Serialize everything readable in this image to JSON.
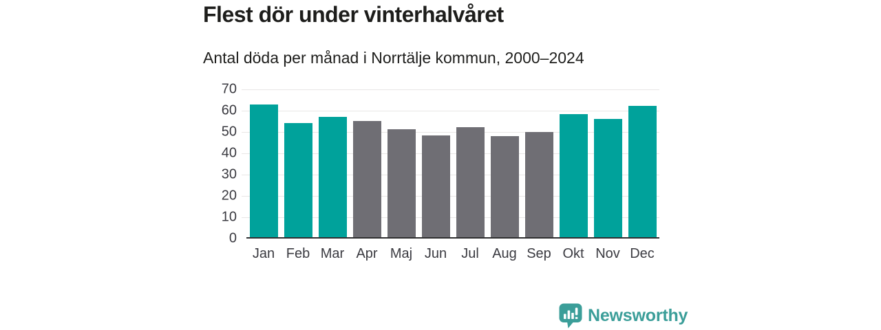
{
  "title": "Flest dör under vinterhalvåret",
  "subtitle": "Antal döda per månad i Norrtälje kommun, 2000–2024",
  "branding": {
    "logo_text": "Newsworthy",
    "logo_icon": "bar-chart-speech-bubble-icon",
    "logo_color": "#3b9e99"
  },
  "colors": {
    "winter_bar": "#00a29b",
    "summer_bar": "#6f6e74",
    "gridline": "#e8e6e5",
    "axis_line": "#2f2f31",
    "axis_label": "#3a3a40",
    "title_text": "#1d1d1b"
  },
  "chart_data": {
    "type": "bar",
    "title": "Flest dör under vinterhalvåret",
    "subtitle": "Antal döda per månad i Norrtälje kommun, 2000–2024",
    "categories": [
      "Jan",
      "Feb",
      "Mar",
      "Apr",
      "Maj",
      "Jun",
      "Jul",
      "Aug",
      "Sep",
      "Okt",
      "Nov",
      "Dec"
    ],
    "values": [
      62.8,
      54.0,
      56.8,
      55.0,
      51.2,
      48.0,
      52.2,
      47.8,
      49.8,
      58.2,
      56.0,
      62.2
    ],
    "bar_groups": [
      "winter",
      "winter",
      "winter",
      "summer",
      "summer",
      "summer",
      "summer",
      "summer",
      "summer",
      "winter",
      "winter",
      "winter"
    ],
    "xlabel": "",
    "ylabel": "",
    "ylim": [
      0,
      70
    ],
    "yticks": [
      0,
      10,
      20,
      30,
      40,
      50,
      60,
      70
    ],
    "grid": true,
    "legend": false
  }
}
